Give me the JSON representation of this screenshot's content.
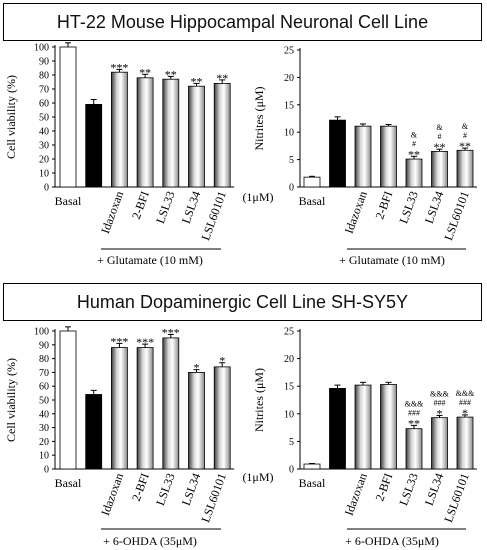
{
  "panels": [
    {
      "title": "HT-22 Mouse Hippocampal Neuronal Cell Line"
    },
    {
      "title": "Human Dopaminergic Cell Line SH-SY5Y"
    }
  ],
  "concentration_label": "(1μM)",
  "chart_data": [
    {
      "type": "bar",
      "ylabel": "Cell viability (%)",
      "ylim": [
        0,
        100
      ],
      "yticks": [
        0,
        10,
        20,
        30,
        40,
        50,
        60,
        70,
        80,
        90,
        100
      ],
      "categories": [
        "Basal",
        "",
        "Idazoxan",
        "2-BFI",
        "LSL33",
        "LSL34",
        "LSL60101"
      ],
      "values": [
        100,
        59,
        82,
        78,
        77,
        72,
        74
      ],
      "errors": [
        3,
        3.5,
        2,
        2.5,
        2,
        2,
        2.5
      ],
      "bar_fills": [
        "white",
        "black",
        "gradient",
        "gradient",
        "gradient",
        "gradient",
        "gradient"
      ],
      "annotations": [
        [],
        [],
        [
          "***"
        ],
        [
          "**"
        ],
        [
          "**"
        ],
        [
          "**"
        ],
        [
          "**"
        ]
      ],
      "treatment_label": "+ Glutamate (10 mM)"
    },
    {
      "type": "bar",
      "ylabel": "Nitrites (μM)",
      "ylim": [
        0,
        25
      ],
      "yticks": [
        0,
        5,
        10,
        15,
        20,
        25
      ],
      "categories": [
        "Basal",
        "",
        "Idazoxan",
        "2-BFI",
        "LSL33",
        "LSL34",
        "LSL60101"
      ],
      "values": [
        1.8,
        12.2,
        11.1,
        11.1,
        5.1,
        6.5,
        6.7
      ],
      "errors": [
        0.15,
        0.6,
        0.4,
        0.3,
        0.5,
        0.4,
        0.4
      ],
      "bar_fills": [
        "white",
        "black",
        "gradient",
        "gradient",
        "gradient",
        "gradient",
        "gradient"
      ],
      "annotations": [
        [],
        [],
        [],
        [],
        [
          "&",
          "#",
          "**"
        ],
        [
          "&",
          "#",
          "**"
        ],
        [
          "&",
          "#",
          "**"
        ]
      ],
      "treatment_label": "+ Glutamate (10 mM)"
    },
    {
      "type": "bar",
      "ylabel": "Cell viability (%)",
      "ylim": [
        0,
        100
      ],
      "yticks": [
        0,
        10,
        20,
        30,
        40,
        50,
        60,
        70,
        80,
        90,
        100
      ],
      "categories": [
        "Basal",
        "",
        "Idazoxan",
        "2-BFI",
        "LSL33",
        "LSL34",
        "LSL60101"
      ],
      "values": [
        100,
        54,
        88,
        88,
        95,
        70,
        74
      ],
      "errors": [
        3,
        3,
        3,
        2.5,
        2.5,
        2,
        3
      ],
      "bar_fills": [
        "white",
        "black",
        "gradient",
        "gradient",
        "gradient",
        "gradient",
        "gradient"
      ],
      "annotations": [
        [],
        [],
        [
          "***"
        ],
        [
          "***"
        ],
        [
          "***"
        ],
        [
          "*"
        ],
        [
          "*"
        ]
      ],
      "treatment_label": "+ 6-OHDA (35μM)"
    },
    {
      "type": "bar",
      "ylabel": "Nitrites (μM)",
      "ylim": [
        0,
        25
      ],
      "yticks": [
        0,
        5,
        10,
        15,
        20,
        25
      ],
      "categories": [
        "Basal",
        "",
        "Idazoxan",
        "2-BFI",
        "LSL33",
        "LSL34",
        "LSL60101"
      ],
      "values": [
        0.9,
        14.6,
        15.2,
        15.3,
        7.3,
        9.3,
        9.4
      ],
      "errors": [
        0.1,
        0.6,
        0.5,
        0.4,
        0.6,
        0.4,
        0.4
      ],
      "bar_fills": [
        "white",
        "black",
        "gradient",
        "gradient",
        "gradient",
        "gradient",
        "gradient"
      ],
      "annotations": [
        [],
        [],
        [],
        [],
        [
          "&&&",
          "###",
          "**"
        ],
        [
          "&&&",
          "###",
          "*"
        ],
        [
          "&&&",
          "###",
          "*"
        ]
      ],
      "treatment_label": "+ 6-OHDA (35μM)"
    }
  ]
}
